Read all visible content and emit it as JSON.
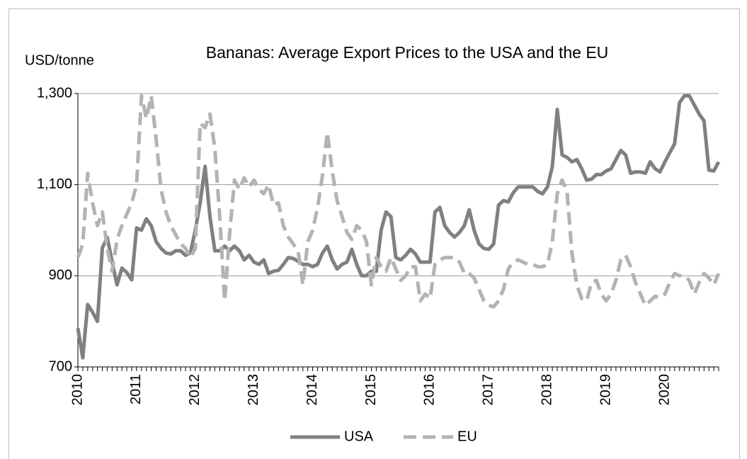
{
  "chart_data": {
    "type": "line",
    "title": "Bananas: Average Export Prices to the USA and the EU",
    "y_label": "USD/tonne",
    "categories": [
      "2010",
      null,
      null,
      null,
      null,
      null,
      null,
      null,
      null,
      null,
      null,
      null,
      "2011",
      null,
      null,
      null,
      null,
      null,
      null,
      null,
      null,
      null,
      null,
      null,
      "2012",
      null,
      null,
      null,
      null,
      null,
      null,
      null,
      null,
      null,
      null,
      null,
      "2013",
      null,
      null,
      null,
      null,
      null,
      null,
      null,
      null,
      null,
      null,
      null,
      "2014",
      null,
      null,
      null,
      null,
      null,
      null,
      null,
      null,
      null,
      null,
      null,
      "2015",
      null,
      null,
      null,
      null,
      null,
      null,
      null,
      null,
      null,
      null,
      null,
      "2016",
      null,
      null,
      null,
      null,
      null,
      null,
      null,
      null,
      null,
      null,
      null,
      "2017",
      null,
      null,
      null,
      null,
      null,
      null,
      null,
      null,
      null,
      null,
      null,
      "2018",
      null,
      null,
      null,
      null,
      null,
      null,
      null,
      null,
      null,
      null,
      null,
      "2019",
      null,
      null,
      null,
      null,
      null,
      null,
      null,
      null,
      null,
      null,
      null,
      "2020",
      null,
      null,
      null,
      null,
      null,
      null,
      null,
      null,
      null,
      null,
      null
    ],
    "series": [
      {
        "name": "USA",
        "color": "#808080",
        "dash": false,
        "values": [
          785,
          720,
          837,
          820,
          800,
          961,
          984,
          930,
          880,
          917,
          907,
          891,
          1005,
          1000,
          1025,
          1010,
          975,
          960,
          950,
          948,
          955,
          955,
          945,
          950,
          1000,
          1060,
          1140,
          1030,
          955,
          955,
          965,
          955,
          965,
          955,
          935,
          945,
          930,
          925,
          935,
          905,
          910,
          912,
          925,
          940,
          938,
          932,
          925,
          925,
          920,
          925,
          950,
          965,
          935,
          915,
          925,
          930,
          958,
          925,
          900,
          900,
          910,
          910,
          1000,
          1040,
          1030,
          940,
          935,
          945,
          958,
          948,
          930,
          930,
          930,
          1040,
          1050,
          1010,
          995,
          985,
          995,
          1010,
          1045,
          1000,
          970,
          960,
          958,
          970,
          1055,
          1065,
          1062,
          1082,
          1095,
          1095,
          1095,
          1095,
          1085,
          1080,
          1095,
          1140,
          1265,
          1165,
          1160,
          1150,
          1155,
          1135,
          1110,
          1112,
          1122,
          1122,
          1130,
          1135,
          1155,
          1175,
          1165,
          1125,
          1128,
          1128,
          1125,
          1150,
          1135,
          1128,
          1150,
          1170,
          1190,
          1280,
          1295,
          1295,
          1275,
          1255,
          1240,
          1132,
          1130,
          1150
        ]
      },
      {
        "name": "EU",
        "color": "#b3b3b3",
        "dash": true,
        "values": [
          940,
          970,
          1125,
          1060,
          1010,
          1040,
          960,
          910,
          980,
          1010,
          1035,
          1060,
          1100,
          1295,
          1245,
          1295,
          1200,
          1090,
          1040,
          1010,
          990,
          970,
          960,
          940,
          960,
          1235,
          1225,
          1255,
          1180,
          1030,
          845,
          990,
          1110,
          1090,
          1115,
          1095,
          1110,
          1090,
          1080,
          1100,
          1055,
          1060,
          1010,
          985,
          970,
          955,
          880,
          975,
          1000,
          1050,
          1120,
          1215,
          1130,
          1065,
          1030,
          995,
          980,
          1010,
          1000,
          975,
          880,
          940,
          920,
          910,
          940,
          915,
          890,
          900,
          920,
          920,
          845,
          860,
          850,
          925,
          935,
          940,
          940,
          940,
          930,
          905,
          905,
          895,
          870,
          845,
          835,
          832,
          845,
          870,
          915,
          930,
          935,
          930,
          925,
          925,
          920,
          920,
          925,
          975,
          1080,
          1110,
          1085,
          950,
          880,
          850,
          845,
          885,
          890,
          860,
          845,
          860,
          890,
          935,
          945,
          920,
          885,
          860,
          835,
          845,
          855,
          852,
          860,
          885,
          905,
          900,
          900,
          890,
          860,
          885,
          905,
          895,
          880,
          905
        ]
      }
    ],
    "ylim": [
      700,
      1300
    ],
    "yticks": [
      700,
      900,
      {
        "value": 1100,
        "label": "1,100"
      },
      {
        "value": 1300,
        "label": "1,300"
      }
    ],
    "grid": true,
    "legend": "bottom"
  }
}
